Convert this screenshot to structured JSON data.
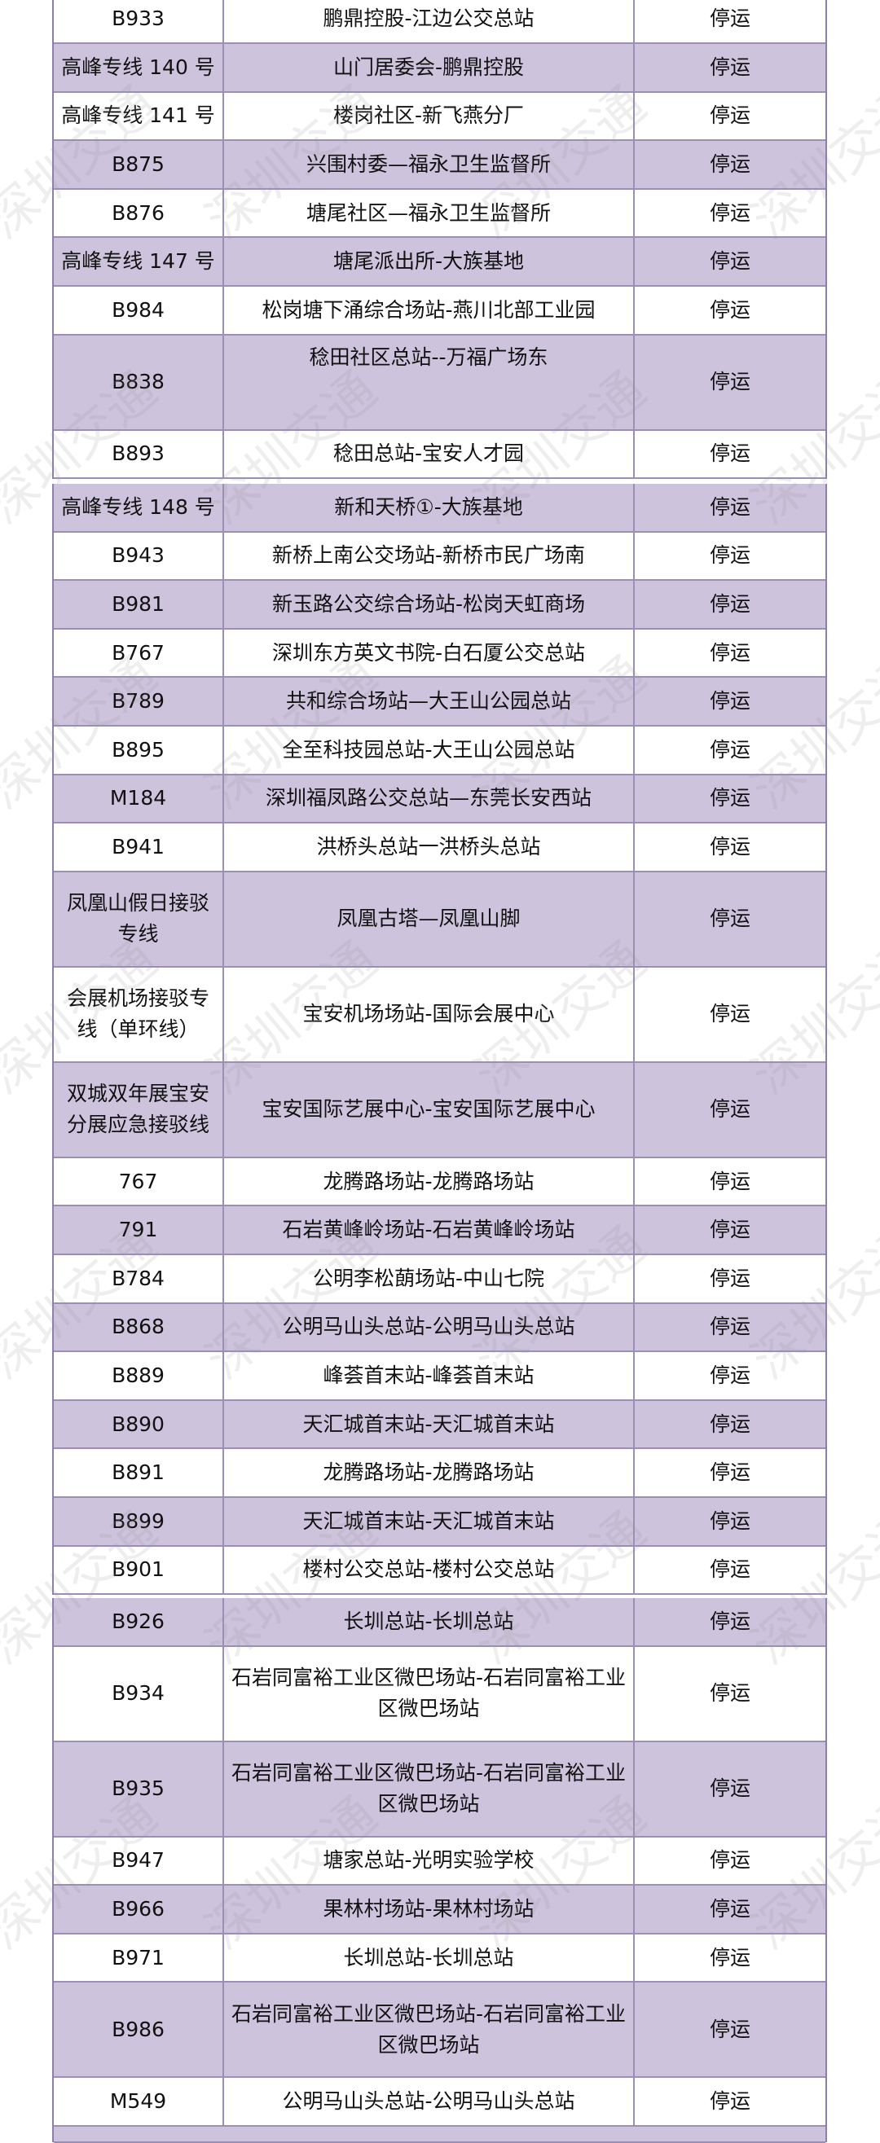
{
  "watermark": "深圳交通",
  "colors": {
    "row_alt": "#cdc3dd",
    "border": "#9b8fb5"
  },
  "sections": [
    [
      {
        "route": "B933",
        "stops": "鹏鼎控股-江边公交总站",
        "status": "停运"
      },
      {
        "route": "高峰专线 140 号",
        "stops": "山门居委会-鹏鼎控股",
        "status": "停运"
      },
      {
        "route": "高峰专线 141 号",
        "stops": "楼岗社区-新飞燕分厂",
        "status": "停运"
      },
      {
        "route": "B875",
        "stops": "兴围村委—福永卫生监督所",
        "status": "停运"
      },
      {
        "route": "B876",
        "stops": "塘尾社区—福永卫生监督所",
        "status": "停运"
      },
      {
        "route": "高峰专线 147 号",
        "stops": "塘尾派出所-大族基地",
        "status": "停运"
      },
      {
        "route": "B984",
        "stops": "松岗塘下涌综合场站-燕川北部工业园",
        "status": "停运"
      },
      {
        "route": "B838",
        "stops": "稔田社区总站--万福广场东",
        "status": "停运",
        "tall": true,
        "top": true
      },
      {
        "route": "B893",
        "stops": "稔田总站-宝安人才园",
        "status": "停运"
      }
    ],
    [
      {
        "route": "高峰专线 148 号",
        "stops": "新和天桥①-大族基地",
        "status": "停运"
      },
      {
        "route": "B943",
        "stops": "新桥上南公交场站-新桥市民广场南",
        "status": "停运"
      },
      {
        "route": "B981",
        "stops": "新玉路公交综合场站-松岗天虹商场",
        "status": "停运"
      },
      {
        "route": "B767",
        "stops": "深圳东方英文书院-白石厦公交总站",
        "status": "停运"
      },
      {
        "route": "B789",
        "stops": "共和综合场站—大王山公园总站",
        "status": "停运"
      },
      {
        "route": "B895",
        "stops": "全至科技园总站-大王山公园总站",
        "status": "停运"
      },
      {
        "route": "M184",
        "stops": "深圳福凤路公交总站—东莞长安西站",
        "status": "停运"
      },
      {
        "route": "B941",
        "stops": "洪桥头总站一洪桥头总站",
        "status": "停运"
      },
      {
        "route": "凤凰山假日接驳专线",
        "stops": "凤凰古塔—凤凰山脚",
        "status": "停运",
        "tall": true
      },
      {
        "route": "会展机场接驳专线（单环线）",
        "stops": "宝安机场场站-国际会展中心",
        "status": "停运",
        "tall": true
      },
      {
        "route": "双城双年展宝安分展应急接驳线",
        "stops": "宝安国际艺展中心-宝安国际艺展中心",
        "status": "停运",
        "tall": true
      },
      {
        "route": "767",
        "stops": "龙腾路场站-龙腾路场站",
        "status": "停运"
      },
      {
        "route": "791",
        "stops": "石岩黄峰岭场站-石岩黄峰岭场站",
        "status": "停运"
      },
      {
        "route": "B784",
        "stops": "公明李松蓢场站-中山七院",
        "status": "停运"
      },
      {
        "route": "B868",
        "stops": "公明马山头总站-公明马山头总站",
        "status": "停运"
      },
      {
        "route": "B889",
        "stops": "峰荟首末站-峰荟首末站",
        "status": "停运"
      },
      {
        "route": "B890",
        "stops": "天汇城首末站-天汇城首末站",
        "status": "停运"
      },
      {
        "route": "B891",
        "stops": "龙腾路场站-龙腾路场站",
        "status": "停运"
      },
      {
        "route": "B899",
        "stops": "天汇城首末站-天汇城首末站",
        "status": "停运"
      },
      {
        "route": "B901",
        "stops": "楼村公交总站-楼村公交总站",
        "status": "停运"
      }
    ],
    [
      {
        "route": "B926",
        "stops": "长圳总站-长圳总站",
        "status": "停运"
      },
      {
        "route": "B934",
        "stops": "石岩同富裕工业区微巴场站-石岩同富裕工业区微巴场站",
        "status": "停运",
        "tall": true
      },
      {
        "route": "B935",
        "stops": "石岩同富裕工业区微巴场站-石岩同富裕工业区微巴场站",
        "status": "停运",
        "tall": true
      },
      {
        "route": "B947",
        "stops": "塘家总站-光明实验学校",
        "status": "停运"
      },
      {
        "route": "B966",
        "stops": "果林村场站-果林村场站",
        "status": "停运"
      },
      {
        "route": "B971",
        "stops": "长圳总站-长圳总站",
        "status": "停运"
      },
      {
        "route": "B986",
        "stops": "石岩同富裕工业区微巴场站-石岩同富裕工业区微巴场站",
        "status": "停运",
        "tall": true
      },
      {
        "route": "M549",
        "stops": "公明马山头总站-公明马山头总站",
        "status": "停运"
      }
    ]
  ]
}
